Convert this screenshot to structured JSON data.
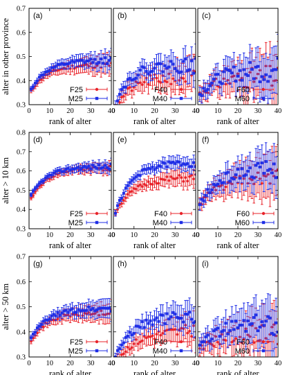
{
  "colors": {
    "F": "#e8232a",
    "M": "#1f2ee6"
  },
  "rows": [
    {
      "ylabel": "alter in other province",
      "yticks": [
        "0.3",
        "0.4",
        "0.5",
        "0.6",
        "0.7"
      ]
    },
    {
      "ylabel": "alter > 10 km",
      "yticks": [
        "0.3",
        "0.4",
        "0.5",
        "0.6",
        "0.7",
        "0.8"
      ]
    },
    {
      "ylabel": "alter > 50 km",
      "yticks": [
        "0.3",
        "0.4",
        "0.5",
        "0.6",
        "0.7"
      ]
    }
  ],
  "xlabel": "rank of alter",
  "xticks": [
    "0",
    "10",
    "20",
    "30",
    "40"
  ],
  "chart_data": [
    {
      "type": "scatter",
      "tag": "(a)",
      "xlabel": "rank of alter",
      "ylabel": "alter in other province",
      "xlim": [
        0,
        40
      ],
      "ylim": [
        0.3,
        0.7
      ],
      "series": [
        {
          "name": "F25",
          "key": "F",
          "start": 0.36,
          "end": 0.47,
          "k": 8,
          "ex": 1.2,
          "err0": 0.01,
          "err1": 0.045,
          "noise": 0.01,
          "seed": 11
        },
        {
          "name": "M25",
          "key": "M",
          "start": 0.36,
          "end": 0.48,
          "k": 8,
          "ex": 1.2,
          "err0": 0.01,
          "err1": 0.04,
          "noise": 0.01,
          "seed": 12
        }
      ]
    },
    {
      "type": "scatter",
      "tag": "(b)",
      "xlabel": "rank of alter",
      "ylabel": "alter in other province",
      "xlim": [
        0,
        40
      ],
      "ylim": [
        0.3,
        0.7
      ],
      "series": [
        {
          "name": "F40",
          "key": "F",
          "start": 0.29,
          "end": 0.42,
          "k": 8,
          "ex": 1.0,
          "err0": 0.02,
          "err1": 0.07,
          "noise": 0.025,
          "seed": 21
        },
        {
          "name": "M40",
          "key": "M",
          "start": 0.3,
          "end": 0.46,
          "k": 7,
          "ex": 1.0,
          "err0": 0.02,
          "err1": 0.06,
          "noise": 0.025,
          "seed": 22
        }
      ]
    },
    {
      "type": "scatter",
      "tag": "(c)",
      "xlabel": "rank of alter",
      "ylabel": "alter in other province",
      "xlim": [
        0,
        40
      ],
      "ylim": [
        0.3,
        0.7
      ],
      "series": [
        {
          "name": "F60",
          "key": "F",
          "start": 0.35,
          "end": 0.42,
          "k": 10,
          "ex": 1.0,
          "err0": 0.03,
          "err1": 0.11,
          "noise": 0.04,
          "seed": 31
        },
        {
          "name": "M60",
          "key": "M",
          "start": 0.34,
          "end": 0.44,
          "k": 9,
          "ex": 1.0,
          "err0": 0.03,
          "err1": 0.1,
          "noise": 0.04,
          "seed": 32
        }
      ]
    },
    {
      "type": "scatter",
      "tag": "(d)",
      "xlabel": "rank of alter",
      "ylabel": "alter > 10 km",
      "xlim": [
        0,
        40
      ],
      "ylim": [
        0.3,
        0.8
      ],
      "series": [
        {
          "name": "F25",
          "key": "F",
          "start": 0.46,
          "end": 0.62,
          "k": 8,
          "ex": 1.0,
          "err0": 0.01,
          "err1": 0.03,
          "noise": 0.01,
          "seed": 41
        },
        {
          "name": "M25",
          "key": "M",
          "start": 0.47,
          "end": 0.62,
          "k": 8,
          "ex": 1.0,
          "err0": 0.01,
          "err1": 0.03,
          "noise": 0.01,
          "seed": 42
        }
      ]
    },
    {
      "type": "scatter",
      "tag": "(e)",
      "xlabel": "rank of alter",
      "ylabel": "alter > 10 km",
      "xlim": [
        0,
        40
      ],
      "ylim": [
        0.3,
        0.8
      ],
      "series": [
        {
          "name": "F40",
          "key": "F",
          "start": 0.39,
          "end": 0.57,
          "k": 9,
          "ex": 1.0,
          "err0": 0.015,
          "err1": 0.05,
          "noise": 0.015,
          "seed": 51
        },
        {
          "name": "M40",
          "key": "M",
          "start": 0.38,
          "end": 0.64,
          "k": 8,
          "ex": 1.0,
          "err0": 0.015,
          "err1": 0.04,
          "noise": 0.015,
          "seed": 52
        }
      ]
    },
    {
      "type": "scatter",
      "tag": "(f)",
      "xlabel": "rank of alter",
      "ylabel": "alter > 10 km",
      "xlim": [
        0,
        40
      ],
      "ylim": [
        0.3,
        0.8
      ],
      "series": [
        {
          "name": "F60",
          "key": "F",
          "start": 0.43,
          "end": 0.57,
          "k": 10,
          "ex": 1.0,
          "err0": 0.03,
          "err1": 0.13,
          "noise": 0.035,
          "seed": 61
        },
        {
          "name": "M60",
          "key": "M",
          "start": 0.42,
          "end": 0.61,
          "k": 10,
          "ex": 1.0,
          "err0": 0.03,
          "err1": 0.11,
          "noise": 0.035,
          "seed": 62
        }
      ]
    },
    {
      "type": "scatter",
      "tag": "(g)",
      "xlabel": "rank of alter",
      "ylabel": "alter > 50 km",
      "xlim": [
        0,
        40
      ],
      "ylim": [
        0.3,
        0.7
      ],
      "series": [
        {
          "name": "F25",
          "key": "F",
          "start": 0.37,
          "end": 0.48,
          "k": 8,
          "ex": 1.0,
          "err0": 0.01,
          "err1": 0.04,
          "noise": 0.01,
          "seed": 71
        },
        {
          "name": "M25",
          "key": "M",
          "start": 0.37,
          "end": 0.49,
          "k": 8,
          "ex": 1.0,
          "err0": 0.01,
          "err1": 0.04,
          "noise": 0.01,
          "seed": 72
        }
      ]
    },
    {
      "type": "scatter",
      "tag": "(h)",
      "xlabel": "rank of alter",
      "ylabel": "alter > 50 km",
      "xlim": [
        0,
        40
      ],
      "ylim": [
        0.3,
        0.7
      ],
      "series": [
        {
          "name": "F40",
          "key": "F",
          "start": 0.28,
          "end": 0.41,
          "k": 10,
          "ex": 1.0,
          "err0": 0.015,
          "err1": 0.06,
          "noise": 0.02,
          "seed": 81
        },
        {
          "name": "M40",
          "key": "M",
          "start": 0.3,
          "end": 0.46,
          "k": 9,
          "ex": 1.0,
          "err0": 0.015,
          "err1": 0.06,
          "noise": 0.02,
          "seed": 82
        }
      ]
    },
    {
      "type": "scatter",
      "tag": "(i)",
      "xlabel": "rank of alter",
      "ylabel": "alter > 50 km",
      "xlim": [
        0,
        40
      ],
      "ylim": [
        0.3,
        0.7
      ],
      "series": [
        {
          "name": "F60",
          "key": "F",
          "start": 0.33,
          "end": 0.4,
          "k": 10,
          "ex": 1.0,
          "err0": 0.03,
          "err1": 0.1,
          "noise": 0.035,
          "seed": 91
        },
        {
          "name": "M60",
          "key": "M",
          "start": 0.34,
          "end": 0.43,
          "k": 10,
          "ex": 1.0,
          "err0": 0.03,
          "err1": 0.1,
          "noise": 0.035,
          "seed": 92
        }
      ]
    }
  ]
}
